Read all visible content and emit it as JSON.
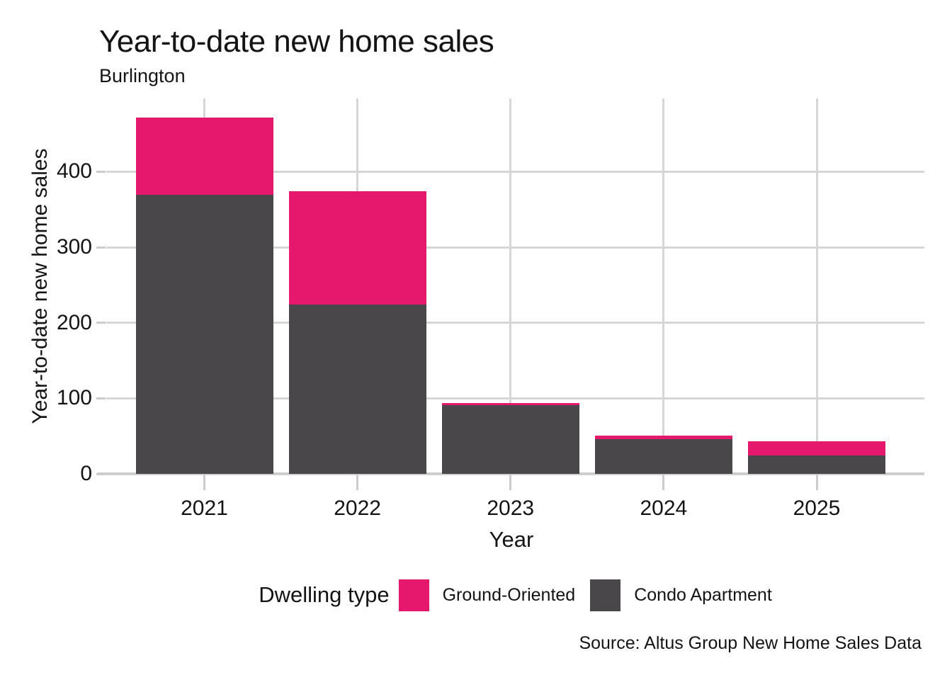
{
  "title": "Year-to-date new home sales",
  "subtitle": "Burlington",
  "source": "Source: Altus Group New Home Sales Data",
  "legend": {
    "title": "Dwelling type",
    "items": [
      {
        "label": "Ground-Oriented",
        "color": "#e6186e"
      },
      {
        "label": "Condo Apartment",
        "color": "#4a474b"
      }
    ]
  },
  "chart_data": {
    "type": "bar",
    "stacked": true,
    "title": "Year-to-date new home sales",
    "subtitle": "Burlington",
    "xlabel": "Year",
    "ylabel": "Year-to-date new home sales",
    "categories": [
      "2021",
      "2022",
      "2023",
      "2024",
      "2025"
    ],
    "series": [
      {
        "name": "Condo Apartment",
        "color": "#4a474b",
        "values": [
          369,
          224,
          91,
          46,
          24
        ]
      },
      {
        "name": "Ground-Oriented",
        "color": "#e6186e",
        "values": [
          103,
          150,
          3,
          5,
          19
        ]
      }
    ],
    "totals": [
      472,
      374,
      94,
      51,
      43
    ],
    "yticks": [
      0,
      100,
      200,
      300,
      400
    ],
    "ylim": [
      0,
      497
    ],
    "grid": true,
    "legend_position": "bottom"
  },
  "colors": {
    "grid": "#d6d6d6",
    "axis": "#cccccc",
    "text": "#141414",
    "background": "#ffffff"
  }
}
